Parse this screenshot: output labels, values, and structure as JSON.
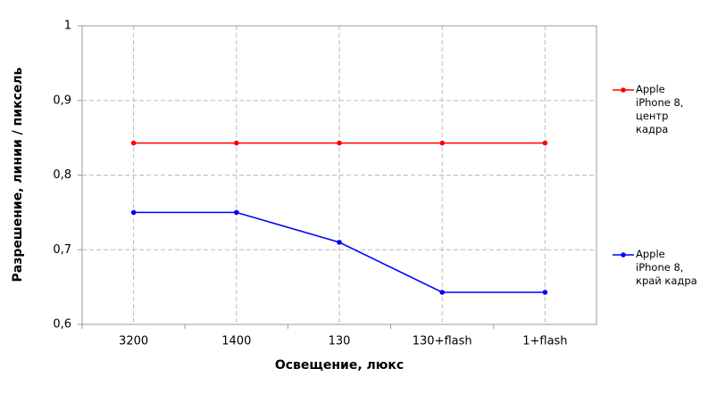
{
  "chart_data": {
    "type": "line",
    "x_label": "Освещение,  люкс",
    "y_label": "Разрешение,  линии / пиксель",
    "categories": [
      "3200",
      "1400",
      "130",
      "130+flash",
      "1+flash"
    ],
    "series": [
      {
        "name": "Apple iPhone 8, центр кадра",
        "color": "#ff0000",
        "values": [
          0.843,
          0.843,
          0.843,
          0.843,
          0.843
        ]
      },
      {
        "name": "Apple iPhone 8, край кадра",
        "color": "#0000ff",
        "values": [
          0.75,
          0.75,
          0.71,
          0.643,
          0.643
        ]
      }
    ],
    "ylim": [
      0.6,
      1
    ],
    "yticks": [
      {
        "value": 0.6,
        "label": "0,6"
      },
      {
        "value": 0.7,
        "label": "0,7"
      },
      {
        "value": 0.8,
        "label": "0,8"
      },
      {
        "value": 0.9,
        "label": "0,9"
      },
      1
    ],
    "grid": true
  }
}
